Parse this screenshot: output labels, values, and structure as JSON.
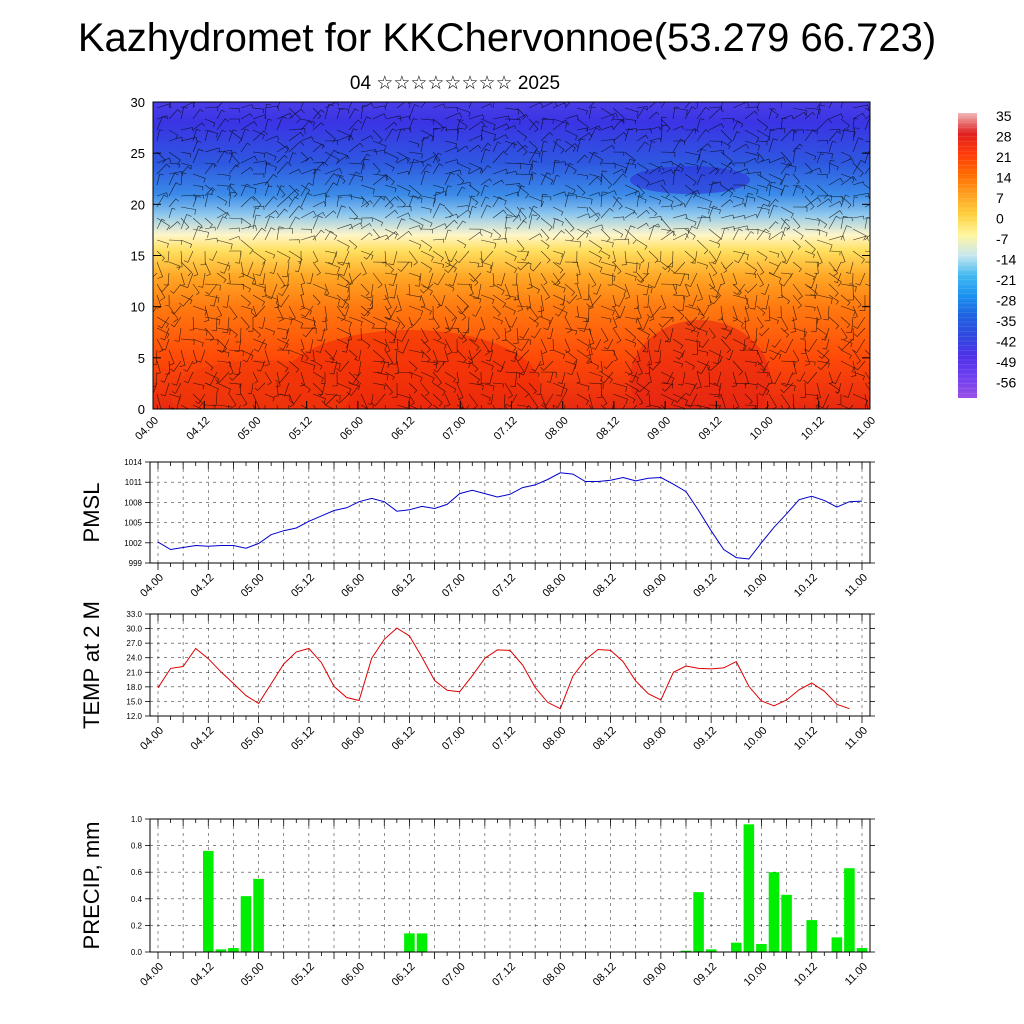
{
  "title": "Kazhydromet for KKChervonnoe(53.279 66.723)",
  "subtitle": "04 ☆☆☆☆☆☆☆☆ 2025",
  "chart_data": [
    {
      "type": "heatmap",
      "title": "",
      "ylabel": "",
      "ylim": [
        0,
        30
      ],
      "yticks": [
        "0",
        "5",
        "10",
        "15",
        "20",
        "25",
        "30"
      ],
      "xticks": [
        "04.00",
        "04.12",
        "05.00",
        "05.12",
        "06.00",
        "06.12",
        "07.00",
        "07.12",
        "08.00",
        "08.12",
        "09.00",
        "09.12",
        "10.00",
        "10.12",
        "11.00"
      ],
      "colorbar": {
        "labels": [
          "35",
          "28",
          "21",
          "14",
          "7",
          "0",
          "-7",
          "-14",
          "-21",
          "-28",
          "-35",
          "-42",
          "-49",
          "-56"
        ],
        "colors": [
          "#f0b8b8",
          "#e02020",
          "#ff3a0a",
          "#ff6a00",
          "#ffa020",
          "#ffd040",
          "#fff6a0",
          "#c8e6f0",
          "#40b8f0",
          "#1a90f0",
          "#2060e0",
          "#3048e0",
          "#5030e8",
          "#7040f0",
          "#9a50e6"
        ]
      },
      "layers": [
        {
          "height": 0,
          "color": "#e82a10"
        },
        {
          "height": 5,
          "color": "#ff4a08"
        },
        {
          "height": 10,
          "color": "#ff7a10"
        },
        {
          "height": 13,
          "color": "#ffa826"
        },
        {
          "height": 15.5,
          "color": "#ffe060"
        },
        {
          "height": 17,
          "color": "#fff6c8"
        },
        {
          "height": 19,
          "color": "#8fc8ee"
        },
        {
          "height": 21,
          "color": "#3a8ae8"
        },
        {
          "height": 24,
          "color": "#2e58e0"
        },
        {
          "height": 28,
          "color": "#3a34e4"
        },
        {
          "height": 30,
          "color": "#4a3ee8"
        }
      ]
    },
    {
      "type": "line",
      "ylabel": "PMSL",
      "ylim": [
        999,
        1014
      ],
      "yticks": [
        "999",
        "1002",
        "1005",
        "1008",
        "1011",
        "1014"
      ],
      "xticks": [
        "04.00",
        "04.12",
        "05.00",
        "05.12",
        "06.00",
        "06.12",
        "07.00",
        "07.12",
        "08.00",
        "08.12",
        "09.00",
        "09.12",
        "10.00",
        "10.12",
        "11.00"
      ],
      "color": "#0000cc",
      "x": [
        0,
        1,
        2,
        3,
        4,
        5,
        6,
        7,
        8,
        9,
        10,
        11,
        12,
        13,
        14,
        15,
        16,
        17,
        18,
        19,
        20,
        21,
        22,
        23,
        24,
        25,
        26,
        27,
        28,
        29,
        30,
        31,
        32,
        33,
        34,
        35,
        36,
        37,
        38,
        39,
        40,
        41,
        42,
        43,
        44,
        45,
        46,
        47,
        48,
        49,
        50,
        51,
        52,
        53,
        54,
        55,
        56
      ],
      "values": [
        1002.1,
        1001.0,
        1001.3,
        1001.6,
        1001.5,
        1001.6,
        1001.6,
        1001.2,
        1001.9,
        1003.2,
        1003.8,
        1004.2,
        1005.2,
        1006.0,
        1006.8,
        1007.2,
        1008.1,
        1008.6,
        1008.1,
        1006.7,
        1006.9,
        1007.4,
        1007.1,
        1007.7,
        1009.3,
        1009.8,
        1009.3,
        1008.8,
        1009.2,
        1010.2,
        1010.6,
        1011.4,
        1012.4,
        1012.2,
        1011.1,
        1011.1,
        1011.3,
        1011.7,
        1011.2,
        1011.6,
        1011.7,
        1010.7,
        1009.6,
        1006.8,
        1003.8,
        1001.0,
        999.8,
        999.6,
        1002.0,
        1004.3,
        1006.3,
        1008.4,
        1008.9,
        1008.3,
        1007.3,
        1008.1,
        1008.2
      ]
    },
    {
      "type": "line",
      "ylabel": "TEMP at 2 M",
      "ylim": [
        12,
        33
      ],
      "yticks": [
        "12.0",
        "15.0",
        "18.0",
        "21.0",
        "24.0",
        "27.0",
        "30.0",
        "33.0"
      ],
      "xticks": [
        "04.00",
        "04.12",
        "05.00",
        "05.12",
        "06.00",
        "06.12",
        "07.00",
        "07.12",
        "08.00",
        "08.12",
        "09.00",
        "09.12",
        "10.00",
        "10.12",
        "11.00"
      ],
      "color": "#dd0000",
      "x": [
        0,
        1,
        2,
        3,
        4,
        5,
        6,
        7,
        8,
        9,
        10,
        11,
        12,
        13,
        14,
        15,
        16,
        17,
        18,
        19,
        20,
        21,
        22,
        23,
        24,
        25,
        26,
        27,
        28,
        29,
        30,
        31,
        32,
        33,
        34,
        35,
        36,
        37,
        38,
        39,
        40,
        41,
        42,
        43,
        44,
        45,
        46,
        47,
        48,
        49,
        50,
        51,
        52,
        53,
        54,
        55
      ],
      "values": [
        17.8,
        21.8,
        22.2,
        25.9,
        23.8,
        21.1,
        18.7,
        16.2,
        14.6,
        18.6,
        22.7,
        25.2,
        25.9,
        23.0,
        18.1,
        15.8,
        15.2,
        23.9,
        27.8,
        30.1,
        28.5,
        24.1,
        19.3,
        17.3,
        17.0,
        20.3,
        23.9,
        25.6,
        25.5,
        22.5,
        17.9,
        14.8,
        13.5,
        20.2,
        23.6,
        25.7,
        25.5,
        23.2,
        19.2,
        16.6,
        15.3,
        21.0,
        22.3,
        21.8,
        21.7,
        21.9,
        23.2,
        18.1,
        15.1,
        14.1,
        15.3,
        17.4,
        18.8,
        17.1,
        14.4,
        13.5
      ]
    },
    {
      "type": "bar",
      "ylabel": "PRECIP, mm",
      "ylim": [
        0,
        1.0
      ],
      "yticks": [
        "0.0",
        "0.2",
        "0.4",
        "0.6",
        "0.8",
        "1.0"
      ],
      "xticks": [
        "04.00",
        "04.12",
        "05.00",
        "05.12",
        "06.00",
        "06.12",
        "07.00",
        "07.12",
        "08.00",
        "08.12",
        "09.00",
        "09.12",
        "10.00",
        "10.12",
        "11.00"
      ],
      "color": "#00ee00",
      "x": [
        4,
        5,
        6,
        7,
        8,
        20,
        21,
        42,
        43,
        44,
        46,
        47,
        48,
        49,
        50,
        52,
        54,
        55,
        56
      ],
      "values": [
        0.76,
        0.02,
        0.03,
        0.42,
        0.55,
        0.14,
        0.14,
        0.01,
        0.45,
        0.02,
        0.07,
        0.96,
        0.06,
        0.6,
        0.43,
        0.24,
        0.11,
        0.63,
        0.03
      ]
    }
  ]
}
